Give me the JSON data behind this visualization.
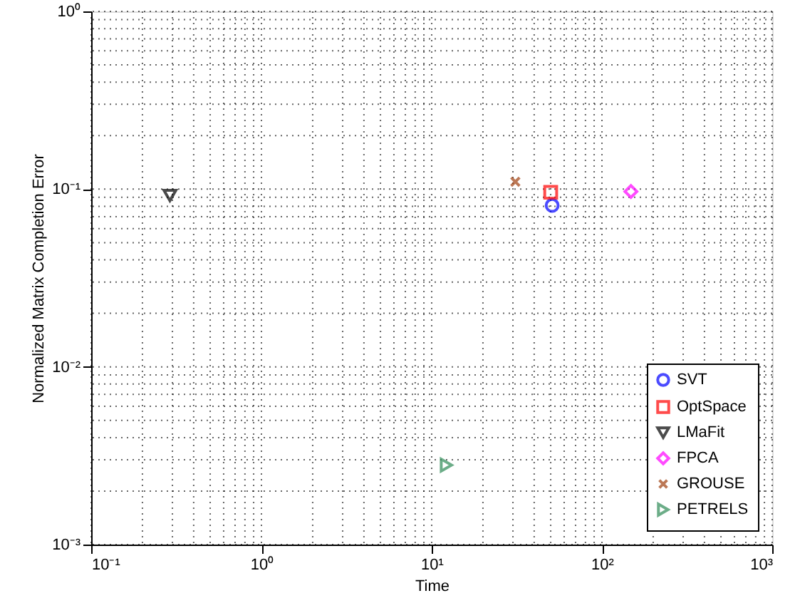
{
  "chart_data": {
    "type": "scatter",
    "xlabel": "Time",
    "ylabel": "Normalized Matrix Completion Error",
    "log": "xy",
    "grid": true,
    "legend": "bottom right",
    "xlim": [
      0.1,
      1000
    ],
    "ylim": [
      0.001,
      1
    ],
    "xticks": [
      {
        "value": 0.1,
        "label": "10⁻¹"
      },
      {
        "value": 1,
        "label": "10⁰"
      },
      {
        "value": 10,
        "label": "10¹"
      },
      {
        "value": 100,
        "label": "10²"
      },
      {
        "value": 1000,
        "label": "10³"
      }
    ],
    "yticks": [
      {
        "value": 0.001,
        "label": "10⁻³"
      },
      {
        "value": 0.01,
        "label": "10⁻²"
      },
      {
        "value": 0.1,
        "label": "10⁻¹"
      },
      {
        "value": 1,
        "label": "10⁰"
      }
    ],
    "series": [
      {
        "name": "SVT",
        "color": "#0000ff",
        "marker": "circle",
        "x": [
          51
        ],
        "values": [
          0.081
        ]
      },
      {
        "name": "OptSpace",
        "color": "#ff0000",
        "marker": "square",
        "x": [
          50
        ],
        "values": [
          0.096
        ]
      },
      {
        "name": "LMaFit",
        "color": "#000000",
        "marker": "triangle-down",
        "x": [
          0.29
        ],
        "values": [
          0.092
        ]
      },
      {
        "name": "FPCA",
        "color": "#ff00ff",
        "marker": "diamond",
        "x": [
          148
        ],
        "values": [
          0.097
        ]
      },
      {
        "name": "GROUSE",
        "color": "#a0400f",
        "marker": "cross",
        "x": [
          31
        ],
        "values": [
          0.11
        ]
      },
      {
        "name": "PETRELS",
        "color": "#2e8b57",
        "marker": "triangle-right",
        "x": [
          12.2
        ],
        "values": [
          0.0028
        ]
      }
    ]
  }
}
